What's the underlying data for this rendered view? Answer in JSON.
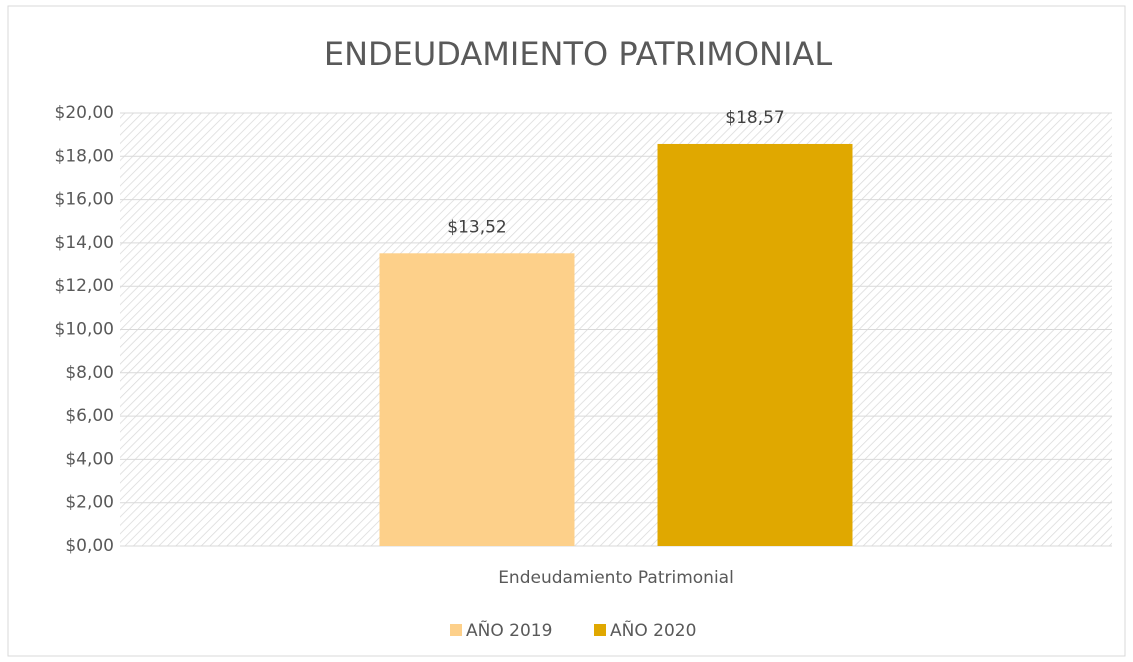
{
  "chart_data": {
    "type": "bar",
    "title": "ENDEUDAMIENTO PATRIMONIAL",
    "categories": [
      "Endeudamiento Patrimonial"
    ],
    "series": [
      {
        "name": "AÑO 2019",
        "color": "#fdd08a",
        "values": [
          13.52
        ],
        "value_labels": [
          "$13,52"
        ]
      },
      {
        "name": "AÑO 2020",
        "color": "#e0a800",
        "values": [
          18.57
        ],
        "value_labels": [
          "$18,57"
        ]
      }
    ],
    "ylim": [
      0,
      20
    ],
    "yticks": [
      {
        "value": 0,
        "label": "$0,00"
      },
      {
        "value": 2,
        "label": "$2,00"
      },
      {
        "value": 4,
        "label": "$4,00"
      },
      {
        "value": 6,
        "label": "$6,00"
      },
      {
        "value": 8,
        "label": "$8,00"
      },
      {
        "value": 10,
        "label": "$10,00"
      },
      {
        "value": 12,
        "label": "$12,00"
      },
      {
        "value": 14,
        "label": "$14,00"
      },
      {
        "value": 16,
        "label": "$16,00"
      },
      {
        "value": 18,
        "label": "$18,00"
      },
      {
        "value": 20,
        "label": "$20,00"
      }
    ],
    "grid": true,
    "legend": "bottom"
  }
}
